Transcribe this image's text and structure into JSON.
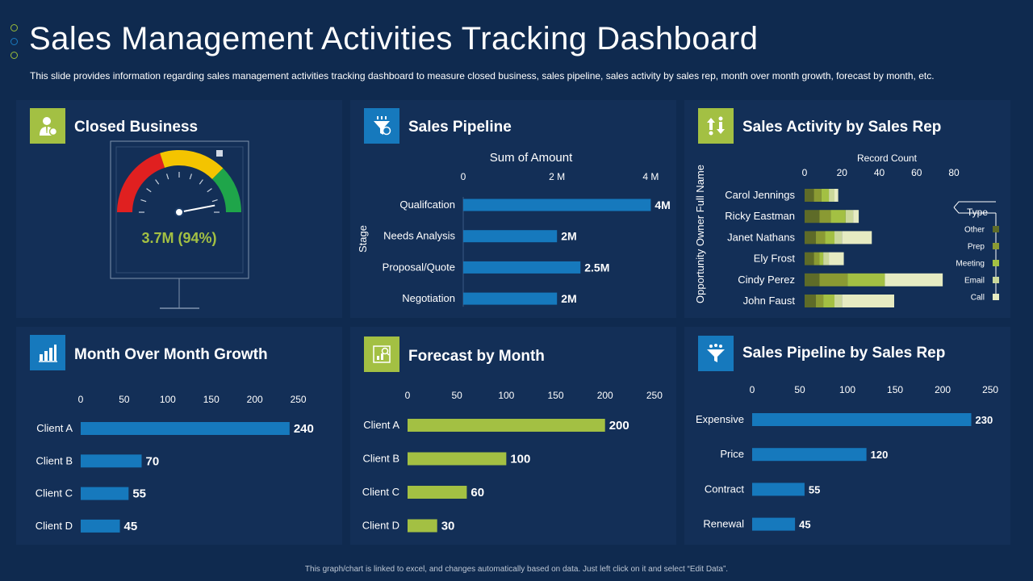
{
  "header": {
    "title": "Sales Management Activities Tracking Dashboard",
    "subtitle": "This slide provides information regarding sales management activities tracking dashboard to measure closed business, sales pipeline, sales activity by sales rep, month over month growth, forecast by month, etc."
  },
  "colors": {
    "background": "#0f2a4f",
    "panel": "#132f57",
    "blue": "#1679bd",
    "green": "#a3c043"
  },
  "panels": {
    "closed_business": {
      "title": "Closed Business",
      "icon": "businessman-icon"
    },
    "sales_pipeline": {
      "title": "Sales Pipeline",
      "icon": "funnel-dollar-icon"
    },
    "sales_activity": {
      "title": "Sales Activity by Sales Rep",
      "icon": "exchange-icon"
    },
    "mom_growth": {
      "title": "Month Over Month Growth",
      "icon": "bar-chart-icon"
    },
    "forecast": {
      "title": "Forecast by Month",
      "icon": "forecast-icon"
    },
    "pipeline_rep": {
      "title": "Sales Pipeline by Sales Rep",
      "icon": "funnel-icon"
    }
  },
  "footnote": "This graph/chart is linked to excel, and changes automatically based on data. Just left click on it and select “Edit Data”.",
  "chart_data": [
    {
      "id": "closed_business",
      "type": "gauge",
      "label": "3.7M (94%)",
      "value_pct": 94,
      "bands": [
        {
          "color": "#e02020",
          "from": 0,
          "to": 40
        },
        {
          "color": "#f4c400",
          "from": 40,
          "to": 75
        },
        {
          "color": "#1fa54a",
          "from": 75,
          "to": 100
        }
      ]
    },
    {
      "id": "sales_pipeline",
      "type": "bar",
      "orientation": "horizontal",
      "title": "Sum of Amount",
      "ylabel": "Stage",
      "categories": [
        "Qualifcation",
        "Needs Analysis",
        "Proposal/Quote",
        "Negotiation"
      ],
      "values": [
        4,
        2,
        2.5,
        2
      ],
      "value_labels": [
        "4M",
        "2M",
        "2.5M",
        "2M"
      ],
      "ticks": [
        0,
        2,
        4
      ],
      "tick_labels": [
        "0",
        "2 M",
        "4 M"
      ],
      "xlim": [
        0,
        4.2
      ],
      "color": "#1679bd"
    },
    {
      "id": "sales_activity",
      "type": "bar",
      "orientation": "horizontal",
      "stacked": true,
      "xlabel": "Record Count",
      "ylabel": "Opportunity Owner Full Name",
      "categories": [
        "Carol Jennings",
        "Ricky Eastman",
        "Janet Nathans",
        "Ely Frost",
        "Cindy Perez",
        "John Faust"
      ],
      "ticks": [
        0,
        20,
        40,
        60,
        80
      ],
      "xlim": [
        0,
        80
      ],
      "legend_title": "Type",
      "series": [
        {
          "name": "Other",
          "color": "#5e6b28",
          "values": [
            5,
            8,
            6,
            5,
            8,
            6
          ]
        },
        {
          "name": "Prep",
          "color": "#8a9a33",
          "values": [
            4,
            6,
            5,
            3,
            15,
            4
          ]
        },
        {
          "name": "Meeting",
          "color": "#a3c043",
          "values": [
            4,
            8,
            5,
            2,
            20,
            6
          ]
        },
        {
          "name": "Email",
          "color": "#cbd89b",
          "values": [
            3,
            4,
            4,
            3,
            0,
            4
          ]
        },
        {
          "name": "Call",
          "color": "#e6ebc2",
          "values": [
            2,
            3,
            16,
            8,
            31,
            28
          ]
        }
      ]
    },
    {
      "id": "mom_growth",
      "type": "bar",
      "orientation": "horizontal",
      "categories": [
        "Client A",
        "Client B",
        "Client C",
        "Client D"
      ],
      "values": [
        240,
        70,
        55,
        45
      ],
      "ticks": [
        0,
        50,
        100,
        150,
        200,
        250
      ],
      "xlim": [
        0,
        255
      ],
      "color": "#1679bd"
    },
    {
      "id": "forecast",
      "type": "bar",
      "orientation": "horizontal",
      "categories": [
        "Client A",
        "Client B",
        "Client C",
        "Client D"
      ],
      "values": [
        200,
        100,
        60,
        30
      ],
      "ticks": [
        0,
        50,
        100,
        150,
        200,
        250
      ],
      "xlim": [
        0,
        255
      ],
      "color": "#a3c043"
    },
    {
      "id": "pipeline_rep",
      "type": "bar",
      "orientation": "horizontal",
      "categories": [
        "Expensive",
        "Price",
        "Contract",
        "Renewal"
      ],
      "values": [
        230,
        120,
        55,
        45
      ],
      "ticks": [
        0,
        50,
        100,
        150,
        200,
        250
      ],
      "xlim": [
        0,
        255
      ],
      "color": "#1679bd"
    }
  ]
}
